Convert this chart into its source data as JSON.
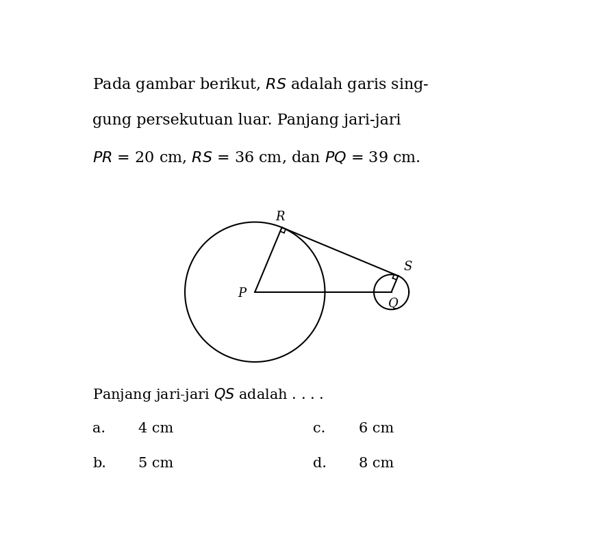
{
  "bg_color": "#ffffff",
  "title_text": "Pada gambar berikut, $RS$ adalah garis sing-\ngung persekutuan luar. Panjang jari-jari\n$PR$ = 20 cm, $RS$ = 36 cm, dan $PQ$ = 39 cm.",
  "question_text": "Panjang jari-jari $QS$ adalah . . . .",
  "options": [
    [
      "a.",
      "4 cm",
      "c.",
      "6 cm"
    ],
    [
      "b.",
      "5 cm",
      "d.",
      "8 cm"
    ]
  ],
  "P": [
    0,
    0
  ],
  "Q": [
    39,
    0
  ],
  "r_P": 20,
  "r_Q": 5,
  "fig_width": 8.66,
  "fig_height": 7.79,
  "dpi": 100,
  "circle_color": "#000000",
  "line_color": "#000000",
  "text_color": "#000000",
  "font_size_title": 16,
  "font_size_options": 15,
  "font_size_labels": 13
}
